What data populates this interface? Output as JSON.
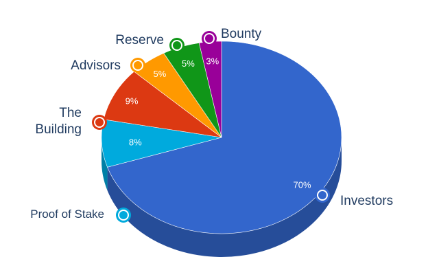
{
  "chart_data": {
    "type": "pie",
    "style": "3d",
    "title": "",
    "slices": [
      {
        "label": "Investors",
        "value": 70,
        "value_label": "70%",
        "color": "#3366cc"
      },
      {
        "label": "Proof of Stake",
        "value": 8,
        "value_label": "8%",
        "color": "#00aadd"
      },
      {
        "label": "The Building",
        "value": 9,
        "value_label": "9%",
        "color": "#dc3912"
      },
      {
        "label": "Advisors",
        "value": 5,
        "value_label": "5%",
        "color": "#ff9900"
      },
      {
        "label": "Reserve",
        "value": 5,
        "value_label": "5%",
        "color": "#109618"
      },
      {
        "label": "Bounty",
        "value": 3,
        "value_label": "3%",
        "color": "#990099"
      }
    ],
    "legend": "outside-callouts",
    "label_color": "#1f3a5f"
  }
}
